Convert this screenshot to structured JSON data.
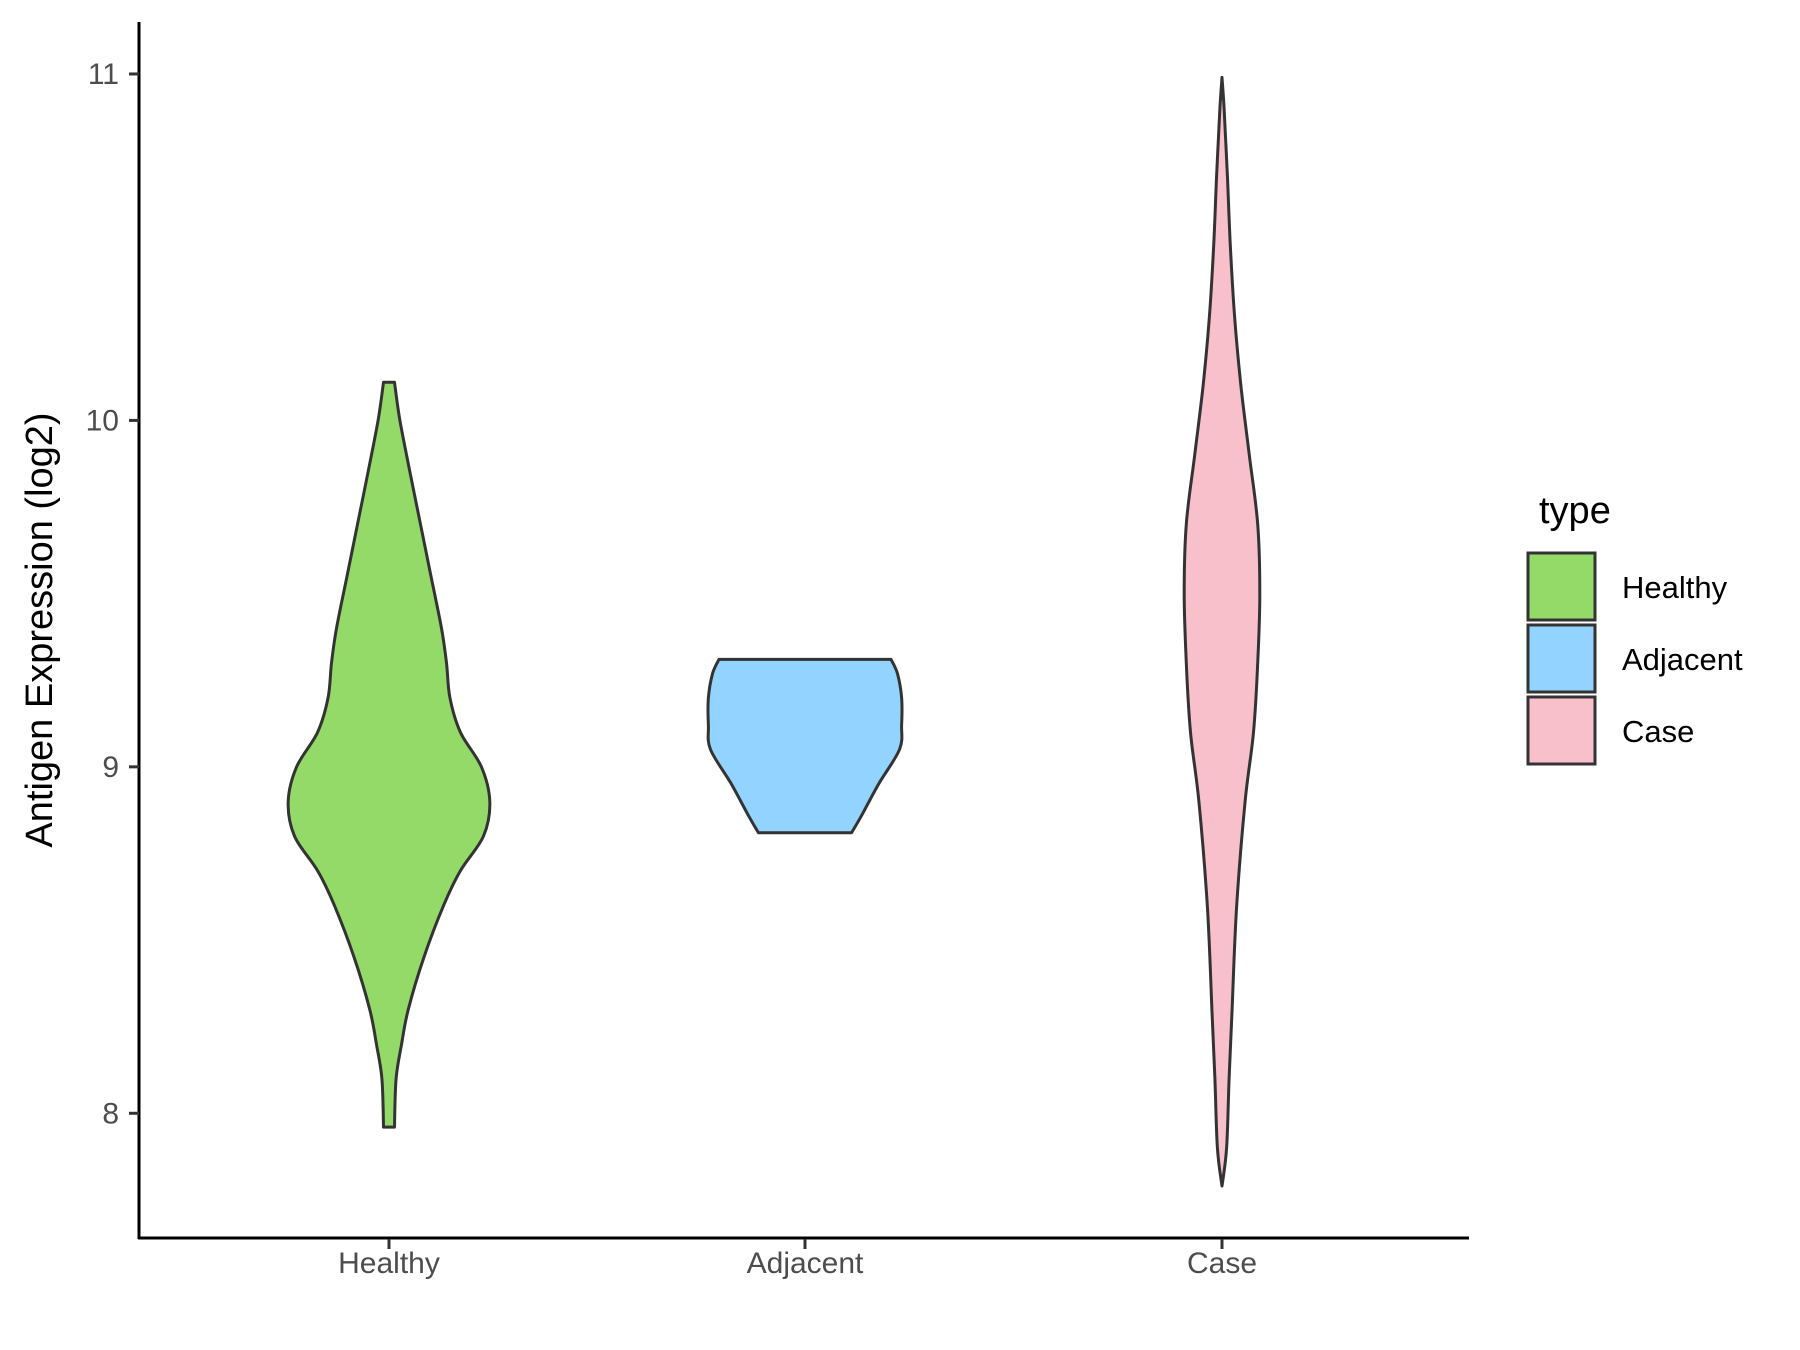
{
  "chart_data": {
    "type": "violin",
    "ylabel": "Antigen Expression (log2)",
    "xlabel": "",
    "categories": [
      "Healthy",
      "Adjacent",
      "Case"
    ],
    "ylim": [
      7.64,
      11.15
    ],
    "yticks": [
      8,
      9,
      10,
      11
    ],
    "grid": false,
    "legend": {
      "title": "type",
      "position": "right",
      "entries": [
        "Healthy",
        "Adjacent",
        "Case"
      ]
    },
    "colors": {
      "Healthy": "#93DA69",
      "Adjacent": "#93D3FF",
      "Case": "#F8C0CB",
      "outline": "#333333"
    },
    "violins": [
      {
        "name": "Healthy",
        "range": [
          7.96,
          10.11
        ],
        "profile": [
          [
            7.96,
            0.013
          ],
          [
            8.1,
            0.017
          ],
          [
            8.2,
            0.03
          ],
          [
            8.3,
            0.046
          ],
          [
            8.45,
            0.083
          ],
          [
            8.6,
            0.13
          ],
          [
            8.7,
            0.17
          ],
          [
            8.8,
            0.225
          ],
          [
            8.9,
            0.24
          ],
          [
            9.0,
            0.22
          ],
          [
            9.1,
            0.17
          ],
          [
            9.2,
            0.145
          ],
          [
            9.3,
            0.137
          ],
          [
            9.4,
            0.125
          ],
          [
            9.55,
            0.1
          ],
          [
            9.7,
            0.075
          ],
          [
            9.85,
            0.05
          ],
          [
            10.0,
            0.026
          ],
          [
            10.11,
            0.013
          ]
        ]
      },
      {
        "name": "Adjacent",
        "range": [
          8.81,
          9.31
        ],
        "profile": [
          [
            8.81,
            0.111
          ],
          [
            8.86,
            0.135
          ],
          [
            8.95,
            0.175
          ],
          [
            9.05,
            0.225
          ],
          [
            9.12,
            0.23
          ],
          [
            9.2,
            0.23
          ],
          [
            9.27,
            0.22
          ],
          [
            9.31,
            0.205
          ]
        ]
      },
      {
        "name": "Case",
        "range": [
          7.79,
          10.99
        ],
        "profile": [
          [
            7.79,
            0.0
          ],
          [
            7.9,
            0.011
          ],
          [
            8.1,
            0.017
          ],
          [
            8.3,
            0.024
          ],
          [
            8.6,
            0.035
          ],
          [
            8.9,
            0.055
          ],
          [
            9.1,
            0.075
          ],
          [
            9.3,
            0.085
          ],
          [
            9.5,
            0.09
          ],
          [
            9.7,
            0.085
          ],
          [
            9.9,
            0.065
          ],
          [
            10.1,
            0.045
          ],
          [
            10.3,
            0.03
          ],
          [
            10.5,
            0.02
          ],
          [
            10.7,
            0.013
          ],
          [
            10.9,
            0.005
          ],
          [
            10.99,
            0.0
          ]
        ]
      }
    ]
  }
}
